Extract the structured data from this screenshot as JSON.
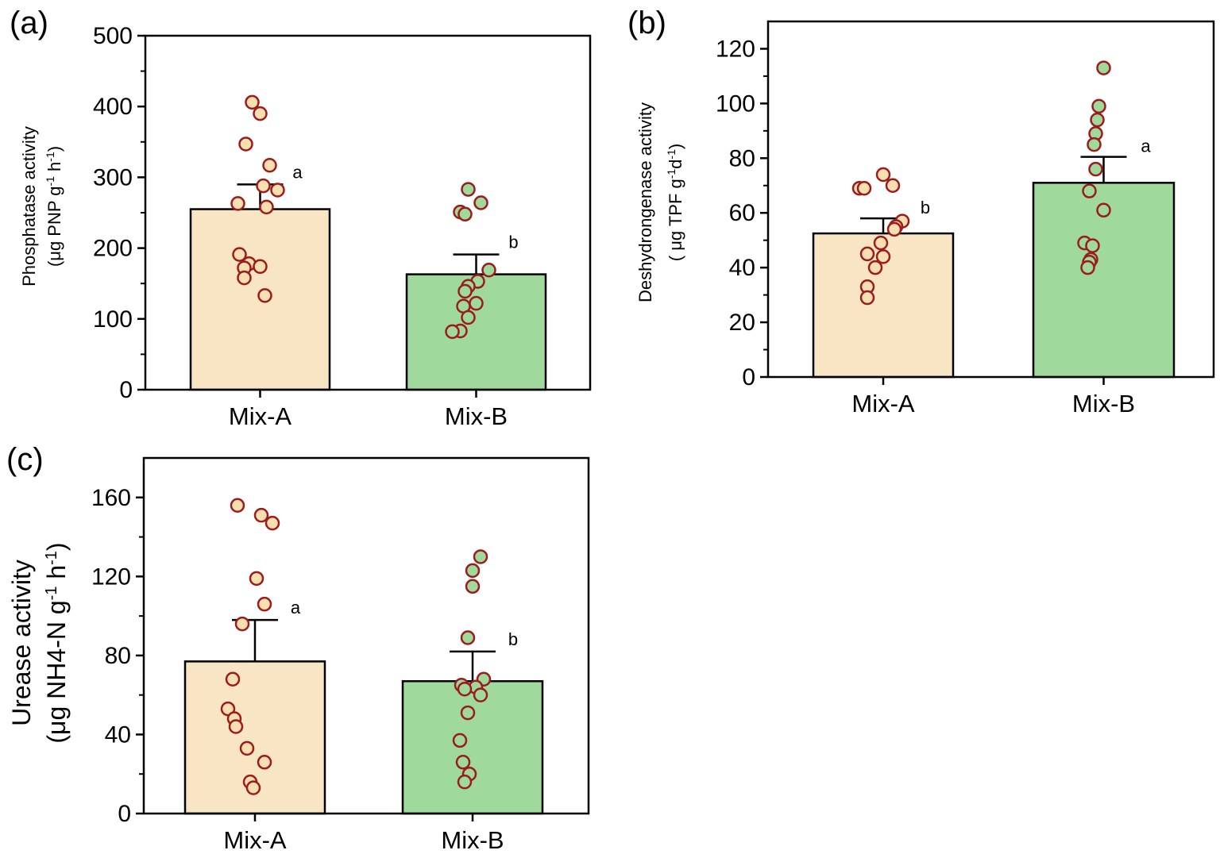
{
  "chart_data": [
    {
      "type": "bar",
      "panel": "(a)",
      "ylabel_line1": "Phosphatase activity",
      "ylabel_line2": "(μg PNP g",
      "ylabel_units": [
        "-1",
        " h",
        "-1",
        ")"
      ],
      "ylim": [
        0,
        500
      ],
      "yticks": [
        0,
        100,
        200,
        300,
        400,
        500
      ],
      "categories": [
        "Mix-A",
        "Mix-B"
      ],
      "colors": [
        "#f8e5c3",
        "#9fd99c"
      ],
      "point_colors": [
        "#f8dfb2",
        "#9fd99c"
      ],
      "point_edge": "#9b1c1c",
      "values": [
        255,
        163
      ],
      "errors": [
        35,
        28
      ],
      "letters": [
        "a",
        "b"
      ],
      "points": [
        [
          406,
          390,
          347,
          317,
          288,
          282,
          263,
          258,
          191,
          178,
          174,
          172,
          158,
          133
        ],
        [
          283,
          264,
          251,
          248,
          169,
          153,
          146,
          139,
          122,
          118,
          102,
          83,
          82
        ]
      ]
    },
    {
      "type": "bar",
      "panel": "(b)",
      "ylabel_line1": "Deshydrongenase activity",
      "ylabel_line2": "( μg TPF g",
      "ylabel_units": [
        "-1",
        "d",
        "-1",
        ")"
      ],
      "ylim": [
        0,
        130
      ],
      "yticks": [
        0,
        20,
        40,
        60,
        80,
        100,
        120
      ],
      "categories": [
        "Mix-A",
        "Mix-B"
      ],
      "colors": [
        "#f8e5c3",
        "#9fd99c"
      ],
      "point_colors": [
        "#f8dfb2",
        "#9fd99c"
      ],
      "point_edge": "#9b1c1c",
      "values": [
        52.5,
        71
      ],
      "errors": [
        5.5,
        9.5
      ],
      "letters": [
        "b",
        "a"
      ],
      "points": [
        [
          74,
          70,
          69,
          69,
          57,
          55,
          54,
          49,
          45,
          44,
          40,
          33,
          29
        ],
        [
          113,
          99,
          94,
          89,
          85,
          76,
          68,
          61,
          49,
          48,
          43,
          42,
          40
        ]
      ]
    },
    {
      "type": "bar",
      "panel": "(c)",
      "ylabel_line1": "Urease activity",
      "ylabel_line2": "(μg NH4-N g",
      "ylabel_units": [
        "-1",
        " h",
        "-1",
        ")"
      ],
      "ylim": [
        0,
        180
      ],
      "yticks": [
        0,
        40,
        80,
        120,
        160
      ],
      "categories": [
        "Mix-A",
        "Mix-B"
      ],
      "colors": [
        "#f8e5c3",
        "#9fd99c"
      ],
      "point_colors": [
        "#f8dfb2",
        "#9fd99c"
      ],
      "point_edge": "#9b1c1c",
      "values": [
        77,
        67
      ],
      "errors": [
        21,
        15
      ],
      "letters": [
        "a",
        "b"
      ],
      "points": [
        [
          156,
          151,
          147,
          119,
          106,
          96,
          68,
          53,
          48,
          44,
          33,
          26,
          16,
          13
        ],
        [
          130,
          123,
          115,
          89,
          68,
          65,
          64,
          63,
          60,
          51,
          37,
          26,
          20,
          16
        ]
      ]
    }
  ]
}
